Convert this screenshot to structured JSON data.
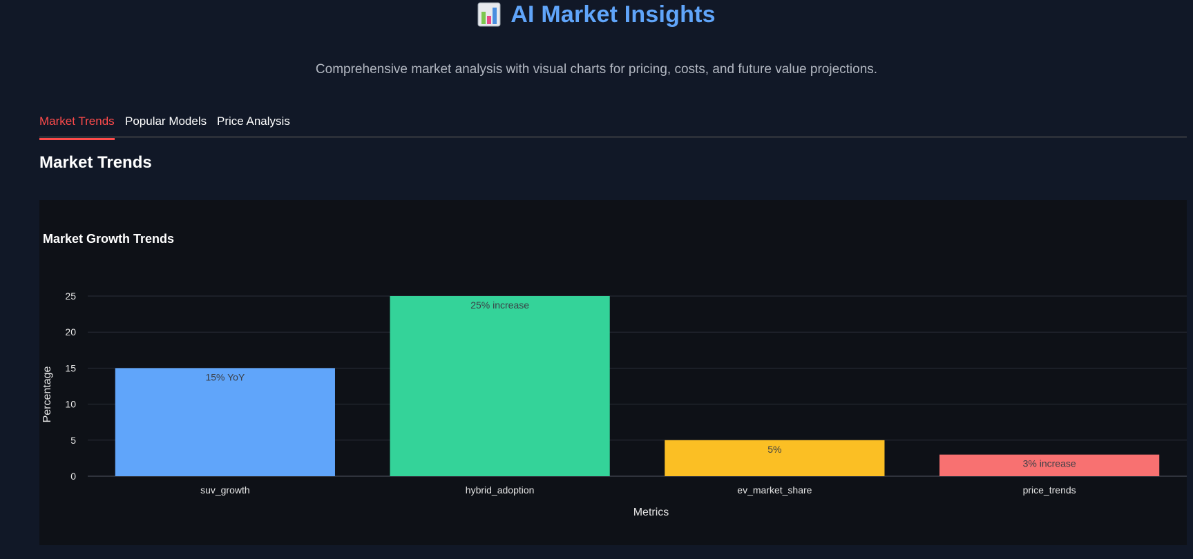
{
  "header": {
    "title": "AI Market Insights",
    "icon": "bar-chart-icon",
    "subtitle": "Comprehensive market analysis with visual charts for pricing, costs, and future value projections."
  },
  "tabs": [
    {
      "label": "Market Trends",
      "active": true
    },
    {
      "label": "Popular Models",
      "active": false
    },
    {
      "label": "Price Analysis",
      "active": false
    }
  ],
  "section": {
    "title": "Market Trends"
  },
  "colors": {
    "accent": "#ff4b4b",
    "title": "#60a5fa",
    "background": "#111827",
    "panel": "#0e1117"
  },
  "chart_data": {
    "type": "bar",
    "title": "Market Growth Trends",
    "xlabel": "Metrics",
    "ylabel": "Percentage",
    "categories": [
      "suv_growth",
      "hybrid_adoption",
      "ev_market_share",
      "price_trends"
    ],
    "values": [
      15,
      25,
      5,
      3
    ],
    "labels": [
      "15% YoY",
      "25% increase",
      "5%",
      "3% increase"
    ],
    "colors": [
      "#60a5fa",
      "#34d399",
      "#fbbf24",
      "#f87171"
    ],
    "ylim": [
      0,
      25
    ],
    "yticks": [
      0,
      5,
      10,
      15,
      20,
      25
    ],
    "grid": true
  }
}
